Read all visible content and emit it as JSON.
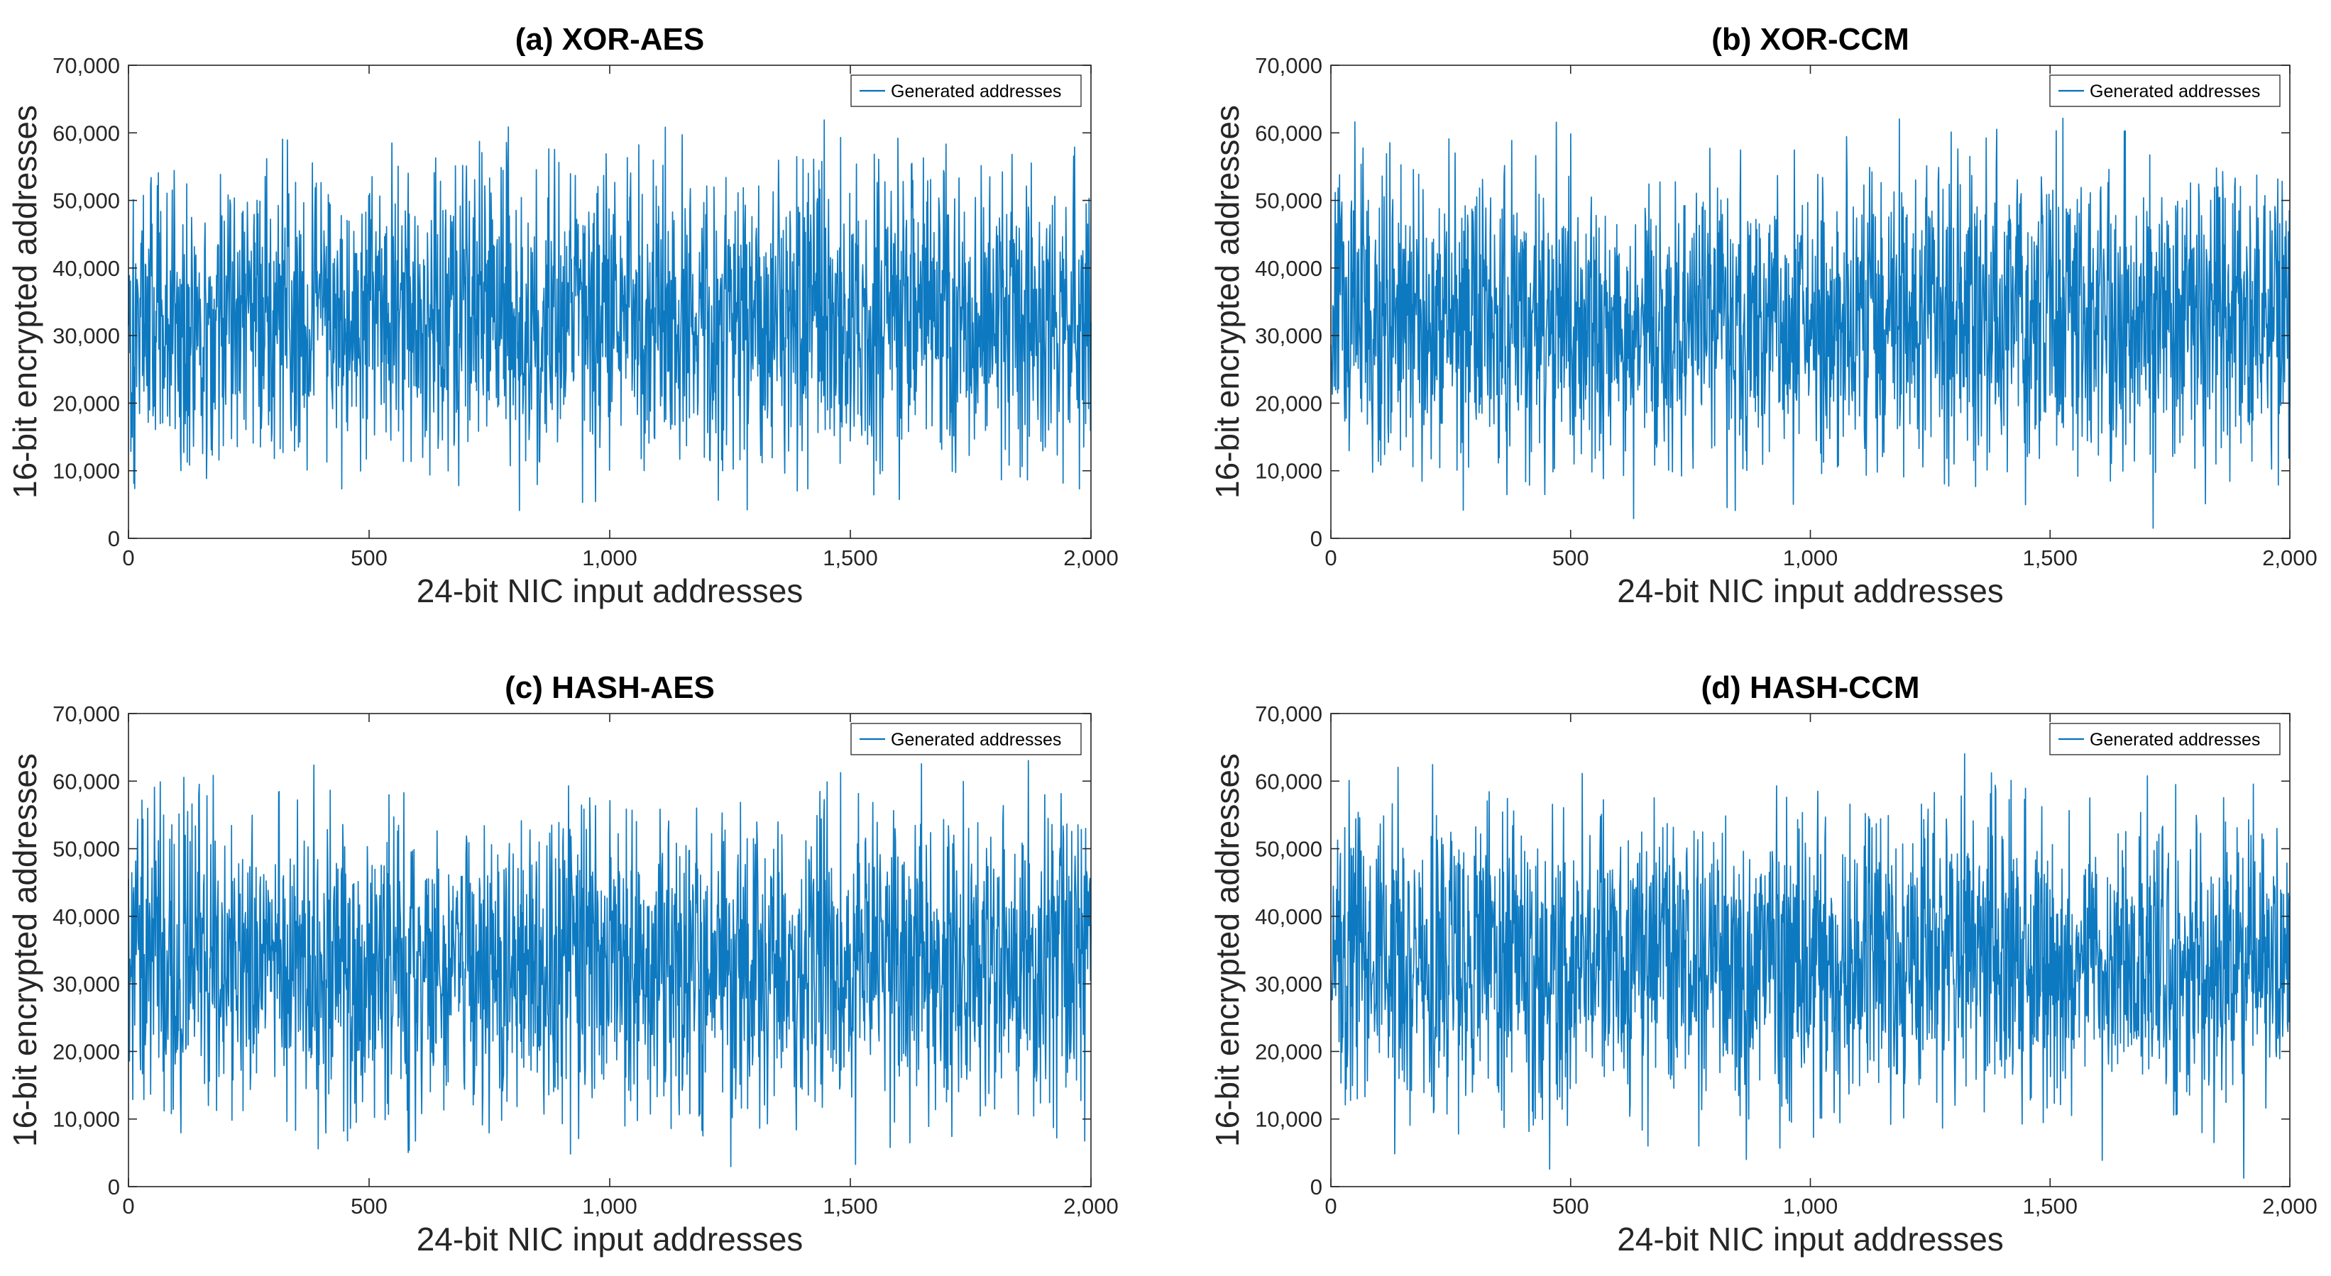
{
  "colors": {
    "series": "#0072BD",
    "axis": "#262626",
    "background": "#ffffff"
  },
  "chart_data": [
    {
      "type": "line",
      "title": "(a) XOR-AES",
      "xlabel": "24-bit NIC input addresses",
      "ylabel": "16-bit encrypted addresses",
      "xlim": [
        0,
        2000
      ],
      "ylim": [
        0,
        70000
      ],
      "x_ticks": [
        0,
        500,
        1000,
        1500,
        2000
      ],
      "x_tick_labels": [
        "0",
        "500",
        "1,000",
        "1,500",
        "2,000"
      ],
      "y_ticks": [
        0,
        10000,
        20000,
        30000,
        40000,
        50000,
        60000,
        70000
      ],
      "y_tick_labels": [
        "0",
        "10,000",
        "20,000",
        "30,000",
        "40,000",
        "50,000",
        "60,000",
        "70,000"
      ],
      "legend": "top-right",
      "series": [
        {
          "name": "Generated addresses",
          "x_start": 0,
          "x_end": 2000,
          "n_points": 2000,
          "value_range": [
            0,
            65535
          ],
          "mean": 32768,
          "seed": 101
        }
      ]
    },
    {
      "type": "line",
      "title": "(b) XOR-CCM",
      "xlabel": "24-bit NIC input addresses",
      "ylabel": "16-bit encrypted addresses",
      "xlim": [
        0,
        2000
      ],
      "ylim": [
        0,
        70000
      ],
      "x_ticks": [
        0,
        500,
        1000,
        1500,
        2000
      ],
      "x_tick_labels": [
        "0",
        "500",
        "1,000",
        "1,500",
        "2,000"
      ],
      "y_ticks": [
        0,
        10000,
        20000,
        30000,
        40000,
        50000,
        60000,
        70000
      ],
      "y_tick_labels": [
        "0",
        "10,000",
        "20,000",
        "30,000",
        "40,000",
        "50,000",
        "60,000",
        "70,000"
      ],
      "legend": "top-right",
      "series": [
        {
          "name": "Generated addresses",
          "x_start": 0,
          "x_end": 2000,
          "n_points": 2000,
          "value_range": [
            0,
            65535
          ],
          "mean": 32768,
          "seed": 202
        }
      ]
    },
    {
      "type": "line",
      "title": "(c) HASH-AES",
      "xlabel": "24-bit NIC input addresses",
      "ylabel": "16-bit encrypted addresses",
      "xlim": [
        0,
        2000
      ],
      "ylim": [
        0,
        70000
      ],
      "x_ticks": [
        0,
        500,
        1000,
        1500,
        2000
      ],
      "x_tick_labels": [
        "0",
        "500",
        "1,000",
        "1,500",
        "2,000"
      ],
      "y_ticks": [
        0,
        10000,
        20000,
        30000,
        40000,
        50000,
        60000,
        70000
      ],
      "y_tick_labels": [
        "0",
        "10,000",
        "20,000",
        "30,000",
        "40,000",
        "50,000",
        "60,000",
        "70,000"
      ],
      "legend": "top-right",
      "series": [
        {
          "name": "Generated addresses",
          "x_start": 0,
          "x_end": 2000,
          "n_points": 2000,
          "value_range": [
            0,
            65535
          ],
          "mean": 32768,
          "seed": 303
        }
      ]
    },
    {
      "type": "line",
      "title": "(d) HASH-CCM",
      "xlabel": "24-bit NIC input addresses",
      "ylabel": "16-bit encrypted addresses",
      "xlim": [
        0,
        2000
      ],
      "ylim": [
        0,
        70000
      ],
      "x_ticks": [
        0,
        500,
        1000,
        1500,
        2000
      ],
      "x_tick_labels": [
        "0",
        "500",
        "1,000",
        "1,500",
        "2,000"
      ],
      "y_ticks": [
        0,
        10000,
        20000,
        30000,
        40000,
        50000,
        60000,
        70000
      ],
      "y_tick_labels": [
        "0",
        "10,000",
        "20,000",
        "30,000",
        "40,000",
        "50,000",
        "60,000",
        "70,000"
      ],
      "legend": "top-right",
      "series": [
        {
          "name": "Generated addresses",
          "x_start": 0,
          "x_end": 2000,
          "n_points": 2000,
          "value_range": [
            0,
            65535
          ],
          "mean": 32768,
          "seed": 404
        }
      ]
    }
  ]
}
